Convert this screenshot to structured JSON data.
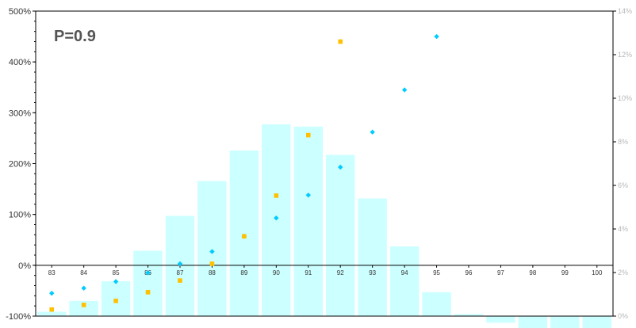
{
  "chart_data": {
    "type": "bar",
    "annotation": "P=0.9",
    "categories": [
      "83",
      "84",
      "85",
      "86",
      "87",
      "88",
      "89",
      "90",
      "91",
      "92",
      "93",
      "94",
      "95",
      "96",
      "97",
      "98",
      "99",
      "100"
    ],
    "series": [
      {
        "axis": "right",
        "kind": "bar",
        "values": [
          0.2,
          0.7,
          1.6,
          3.0,
          4.6,
          6.2,
          7.6,
          8.8,
          8.7,
          7.4,
          5.4,
          3.2,
          1.1,
          0.1,
          -0.3,
          -0.55,
          -0.65,
          -0.68
        ],
        "color": "#ccffff"
      },
      {
        "axis": "left",
        "kind": "points",
        "marker": "diamond",
        "x": [
          "83",
          "84",
          "85",
          "86",
          "87",
          "88",
          "89",
          "90",
          "91",
          "92",
          "93",
          "94",
          "95"
        ],
        "values": [
          -55,
          -45,
          -32,
          -15,
          3,
          27,
          57,
          93,
          138,
          193,
          262,
          345,
          450
        ],
        "color": "#00ccff"
      },
      {
        "axis": "left",
        "kind": "points",
        "marker": "square",
        "x": [
          "83",
          "84",
          "85",
          "86",
          "87",
          "88",
          "89",
          "90",
          "91",
          "92"
        ],
        "values": [
          -87,
          -78,
          -70,
          -53,
          -30,
          3,
          57,
          137,
          256,
          440
        ],
        "color": "#ffc000"
      }
    ],
    "y_left": {
      "min": -100,
      "max": 500,
      "step": 100,
      "tick_labels": [
        "-100%",
        "0%",
        "100%",
        "200%",
        "300%",
        "400%",
        "500%"
      ]
    },
    "y_right": {
      "min": 0,
      "max": 14,
      "step": 2,
      "tick_labels": [
        "0%",
        "2%",
        "4%",
        "6%",
        "8%",
        "10%",
        "12%",
        "14%"
      ]
    },
    "xlabel": "",
    "ylabel": "",
    "grid": false,
    "legend": "none"
  }
}
